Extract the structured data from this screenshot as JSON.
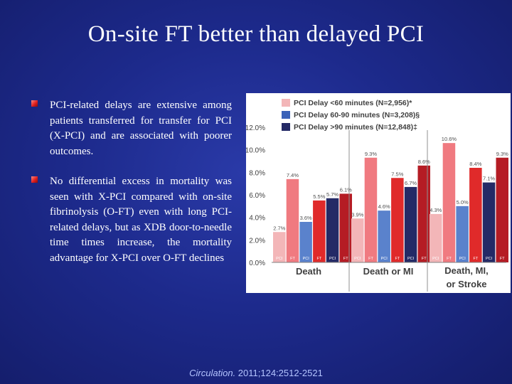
{
  "slide": {
    "title": "On-site FT better than delayed PCI",
    "bullets": [
      "PCI-related delays are extensive among patients transferred for transfer for PCI (X-PCI) and are associated with poorer outcomes.",
      "No differential excess in mortality was seen with X-PCI compared with on-site fibrinolysis (O-FT) even with long PCI-related delays, but as XDB door-to-needle time times increase, the mortality advantage for X-PCI over O-FT declines"
    ],
    "citation": {
      "journal": "Circulation.",
      "rest": " 2011;124:2512-2521"
    }
  },
  "chart_data": {
    "type": "bar",
    "title": "",
    "ylabel": "",
    "ylim": [
      0,
      12
    ],
    "y_tick_labels": [
      "0.0%",
      "2.0%",
      "4.0%",
      "6.0%",
      "8.0%",
      "10.0%",
      "12.0%"
    ],
    "groups": [
      "Death",
      "Death or MI",
      "Death, MI, or Stroke"
    ],
    "legend": [
      {
        "label": "PCI Delay <60 minutes (N=2,956)*",
        "color": "#f07a80"
      },
      {
        "label": "PCI Delay 60-90 minutes (N=3,208)§",
        "color": "#3b62b8"
      },
      {
        "label": "PCI Delay >90 minutes (N=12,848)‡",
        "color": "#242a66"
      }
    ],
    "bars": [
      {
        "group": "Death",
        "delay": "<60",
        "label": "PCI",
        "value": 2.7,
        "value_label": "2.7%"
      },
      {
        "group": "Death",
        "delay": "<60",
        "label": "FT",
        "value": 7.4,
        "value_label": "7.4%"
      },
      {
        "group": "Death",
        "delay": "60-90",
        "label": "PCI",
        "value": 3.6,
        "value_label": "3.6%"
      },
      {
        "group": "Death",
        "delay": "60-90",
        "label": "FT",
        "value": 5.5,
        "value_label": "5.5%"
      },
      {
        "group": "Death",
        "delay": ">90",
        "label": "PCI",
        "value": 5.7,
        "value_label": "5.7%"
      },
      {
        "group": "Death",
        "delay": ">90",
        "label": "FT",
        "value": 6.1,
        "value_label": "6.1%"
      },
      {
        "group": "Death or MI",
        "delay": "<60",
        "label": "PCI",
        "value": 3.9,
        "value_label": "3.9%"
      },
      {
        "group": "Death or MI",
        "delay": "<60",
        "label": "FT",
        "value": 9.3,
        "value_label": "9.3%"
      },
      {
        "group": "Death or MI",
        "delay": "60-90",
        "label": "PCI",
        "value": 4.6,
        "value_label": "4.6%"
      },
      {
        "group": "Death or MI",
        "delay": "60-90",
        "label": "FT",
        "value": 7.5,
        "value_label": "7.5%"
      },
      {
        "group": "Death or MI",
        "delay": ">90",
        "label": "PCI",
        "value": 6.7,
        "value_label": "6.7%"
      },
      {
        "group": "Death or MI",
        "delay": ">90",
        "label": "FT",
        "value": 8.6,
        "value_label": "8.6%"
      },
      {
        "group": "Death, MI, or Stroke",
        "delay": "<60",
        "label": "PCI",
        "value": 4.3,
        "value_label": "4.3%"
      },
      {
        "group": "Death, MI, or Stroke",
        "delay": "<60",
        "label": "FT",
        "value": 10.6,
        "value_label": "10.6%"
      },
      {
        "group": "Death, MI, or Stroke",
        "delay": "60-90",
        "label": "PCI",
        "value": 5.0,
        "value_label": "5.0%"
      },
      {
        "group": "Death, MI, or Stroke",
        "delay": "60-90",
        "label": "FT",
        "value": 8.4,
        "value_label": "8.4%"
      },
      {
        "group": "Death, MI, or Stroke",
        "delay": ">90",
        "label": "PCI",
        "value": 7.1,
        "value_label": "7.1%"
      },
      {
        "group": "Death, MI, or Stroke",
        "delay": ">90",
        "label": "FT",
        "value": 9.3,
        "value_label": "9.3%"
      }
    ],
    "colors": {
      "<60": {
        "PCI": "#f3b6b8",
        "FT": "#f07a80"
      },
      "60-90": {
        "PCI": "#5a82cc",
        "FT": "#e02a2a"
      },
      ">90": {
        "PCI": "#242a66",
        "FT": "#b51c24"
      }
    }
  }
}
